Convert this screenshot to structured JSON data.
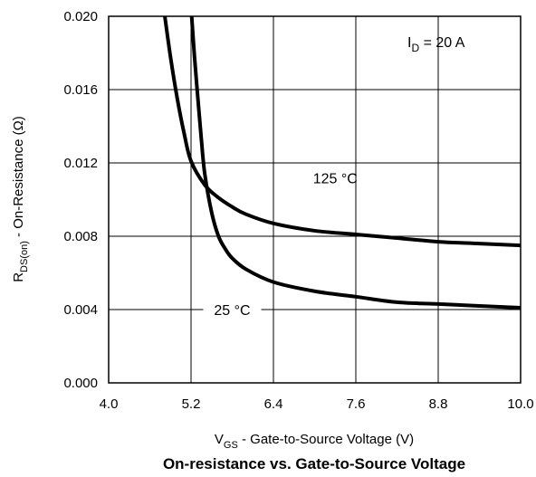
{
  "chart_data": {
    "type": "line",
    "title": "On-resistance vs. Gate-to-Source Voltage",
    "xlabel": {
      "main": "V",
      "sub": "GS",
      "rest": " - Gate-to-Source Voltage (V)"
    },
    "ylabel": {
      "main": "R",
      "sub": "DS(on)",
      "rest": "  - On-Resistance (Ω)"
    },
    "xlim": [
      4.0,
      10.0
    ],
    "ylim": [
      0.0,
      0.02
    ],
    "x_ticks": [
      "4.0",
      "5.2",
      "6.4",
      "7.6",
      "8.8",
      "10.0"
    ],
    "y_ticks": [
      "0.000",
      "0.004",
      "0.008",
      "0.012",
      "0.016",
      "0.020"
    ],
    "grid": true,
    "annotation": {
      "main": "I",
      "sub": "D",
      "rest": " = 20 A"
    },
    "series": [
      {
        "name": "125 °C",
        "x": [
          4.8,
          4.9,
          5.0,
          5.1,
          5.2,
          5.4,
          5.6,
          5.8,
          6.0,
          6.4,
          7.0,
          7.6,
          8.2,
          8.8,
          9.4,
          10.0
        ],
        "y": [
          0.0205,
          0.0178,
          0.0155,
          0.0136,
          0.0121,
          0.0108,
          0.0101,
          0.0096,
          0.0092,
          0.0087,
          0.0083,
          0.0081,
          0.0079,
          0.0077,
          0.0076,
          0.0075
        ]
      },
      {
        "name": "25 °C",
        "x": [
          5.2,
          5.25,
          5.3,
          5.35,
          5.4,
          5.5,
          5.6,
          5.7,
          5.8,
          6.0,
          6.4,
          7.0,
          7.6,
          8.2,
          8.8,
          9.4,
          10.0
        ],
        "y": [
          0.0205,
          0.0178,
          0.0155,
          0.0133,
          0.0114,
          0.0093,
          0.008,
          0.0073,
          0.0068,
          0.0062,
          0.0055,
          0.005,
          0.0047,
          0.0044,
          0.0043,
          0.0042,
          0.0041
        ]
      }
    ]
  }
}
